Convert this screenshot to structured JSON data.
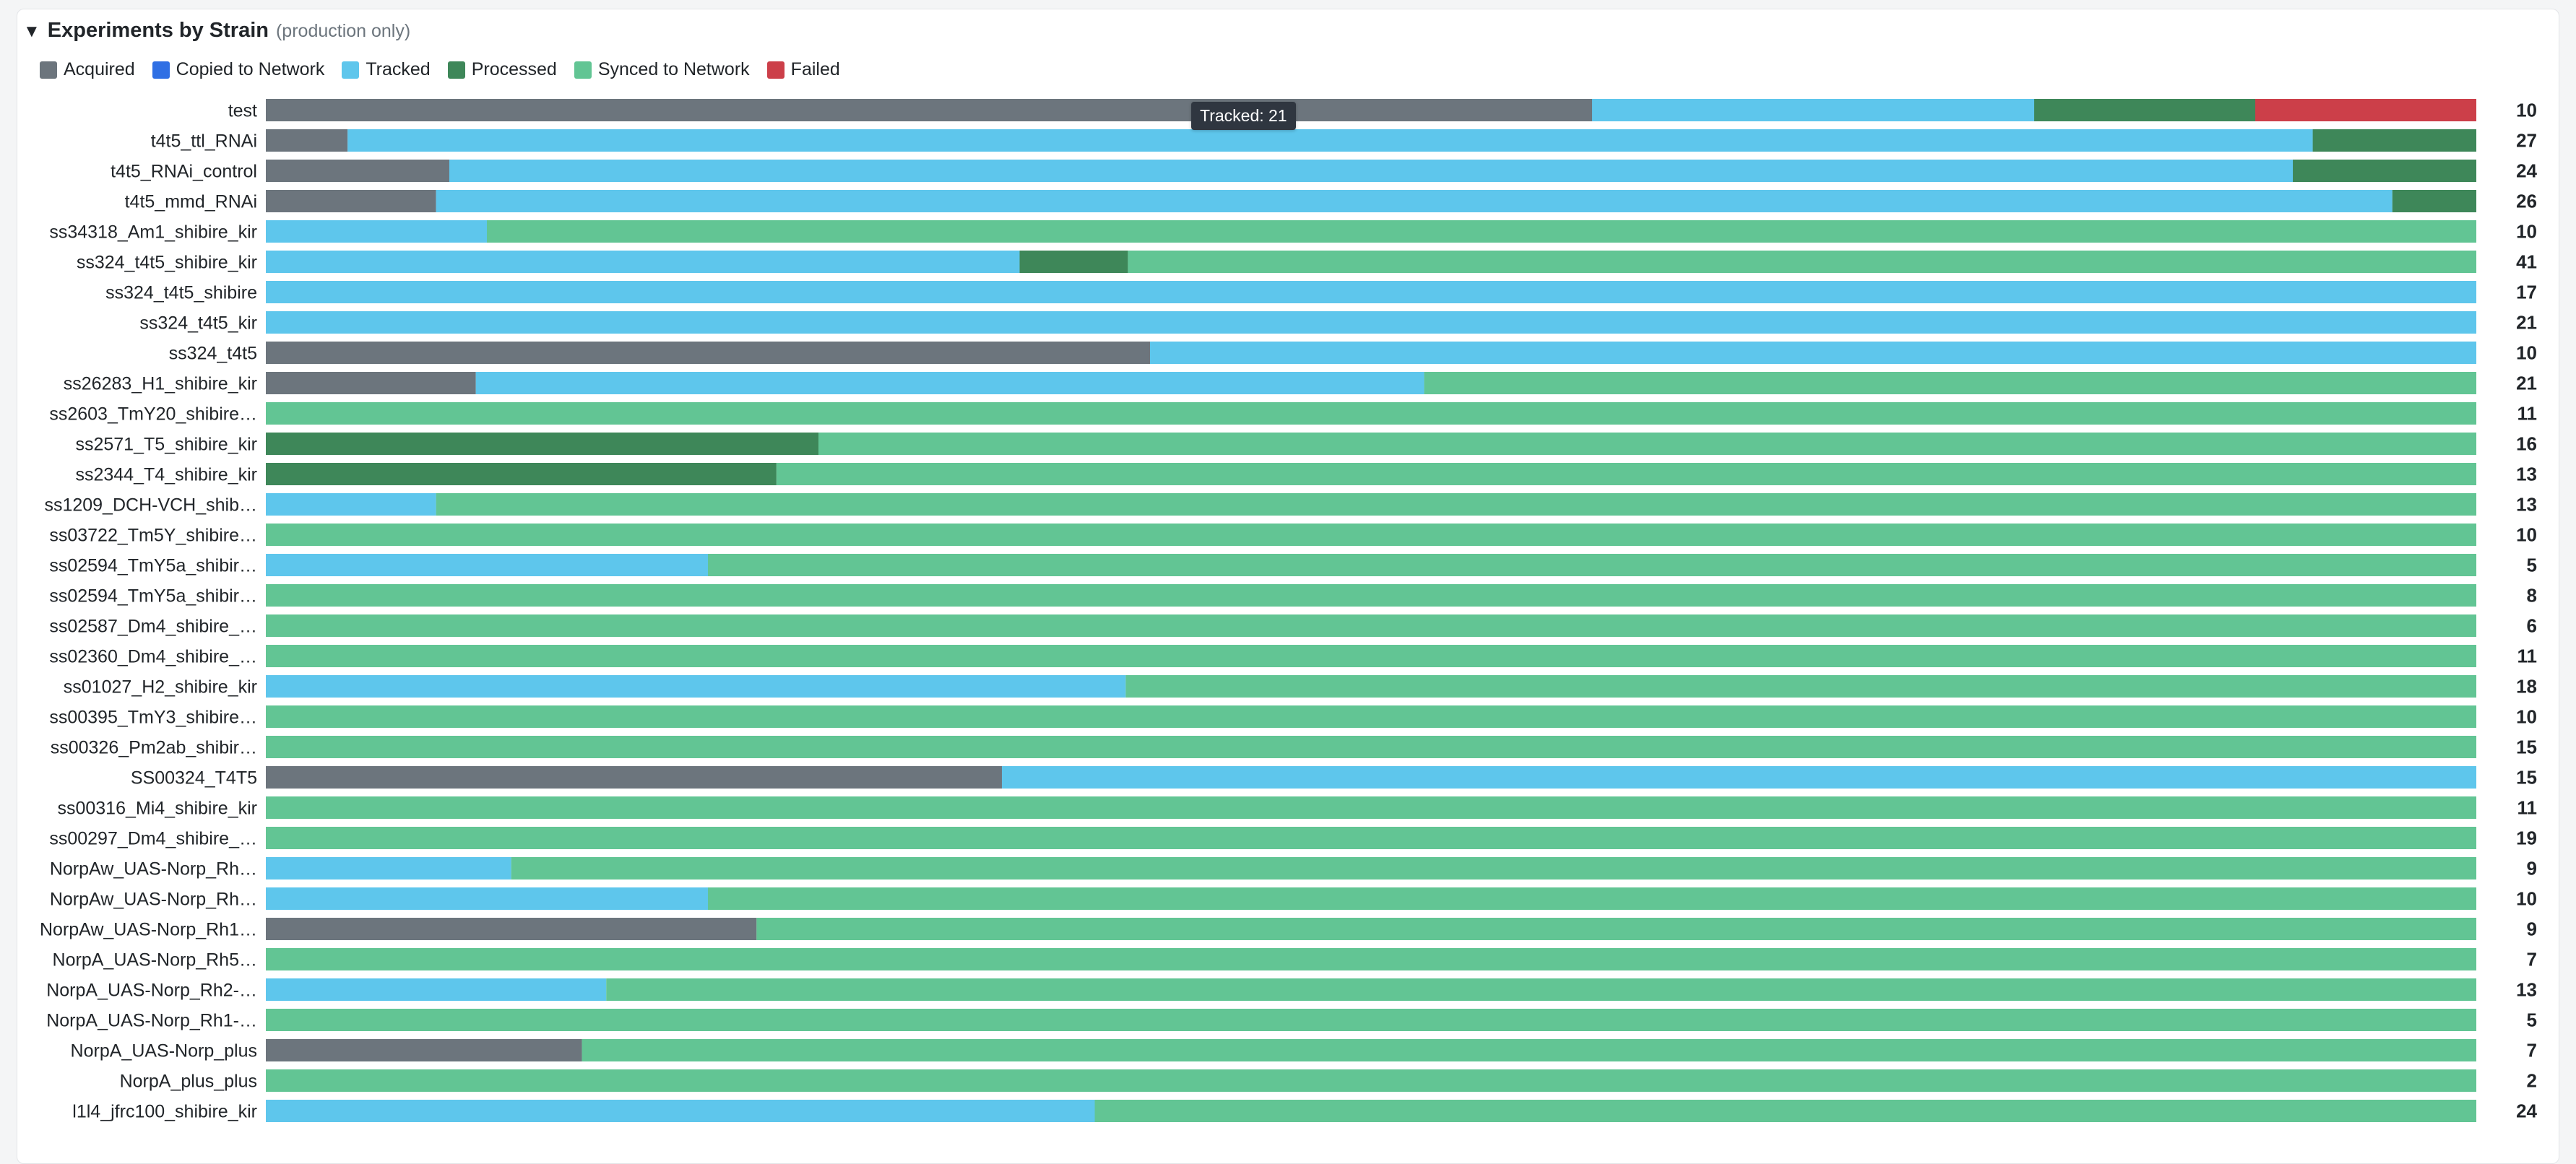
{
  "header": {
    "title": "Experiments by Strain",
    "subtitle": "(production only)"
  },
  "tooltip": {
    "text": "Tracked: 21"
  },
  "colors": {
    "Acquired": "#6c757d",
    "Copied to Network": "#2f6fe4",
    "Tracked": "#5ec6ec",
    "Processed": "#3e8759",
    "Synced to Network": "#62c594",
    "Failed": "#cc3f49"
  },
  "chart_data": {
    "type": "bar",
    "orientation": "horizontal",
    "stacked": "percent",
    "title": "Experiments by Strain",
    "subtitle": "(production only)",
    "legend": [
      "Acquired",
      "Copied to Network",
      "Tracked",
      "Processed",
      "Synced to Network",
      "Failed"
    ],
    "legend_position": "top-left",
    "rows": [
      {
        "label": "test",
        "total": "10",
        "segments": [
          {
            "status": "Acquired",
            "fraction": 0.6
          },
          {
            "status": "Tracked",
            "fraction": 0.2
          },
          {
            "status": "Processed",
            "fraction": 0.1
          },
          {
            "status": "Failed",
            "fraction": 0.1
          }
        ]
      },
      {
        "label": "t4t5_ttl_RNAi",
        "total": "27",
        "segments": [
          {
            "status": "Acquired",
            "fraction": 0.037
          },
          {
            "status": "Tracked",
            "fraction": 0.889
          },
          {
            "status": "Processed",
            "fraction": 0.074
          }
        ]
      },
      {
        "label": "t4t5_RNAi_control",
        "total": "24",
        "segments": [
          {
            "status": "Acquired",
            "fraction": 0.083
          },
          {
            "status": "Tracked",
            "fraction": 0.834
          },
          {
            "status": "Processed",
            "fraction": 0.083
          }
        ]
      },
      {
        "label": "t4t5_mmd_RNAi",
        "total": "26",
        "segments": [
          {
            "status": "Acquired",
            "fraction": 0.077
          },
          {
            "status": "Tracked",
            "fraction": 0.885
          },
          {
            "status": "Processed",
            "fraction": 0.038
          }
        ]
      },
      {
        "label": "ss34318_Am1_shibire_kir",
        "total": "10",
        "segments": [
          {
            "status": "Tracked",
            "fraction": 0.1
          },
          {
            "status": "Synced to Network",
            "fraction": 0.9
          }
        ]
      },
      {
        "label": "ss324_t4t5_shibire_kir",
        "total": "41",
        "segments": [
          {
            "status": "Tracked",
            "fraction": 0.341
          },
          {
            "status": "Processed",
            "fraction": 0.049
          },
          {
            "status": "Synced to Network",
            "fraction": 0.61
          }
        ]
      },
      {
        "label": "ss324_t4t5_shibire",
        "total": "17",
        "segments": [
          {
            "status": "Tracked",
            "fraction": 1.0
          }
        ]
      },
      {
        "label": "ss324_t4t5_kir",
        "total": "21",
        "segments": [
          {
            "status": "Tracked",
            "fraction": 1.0
          }
        ]
      },
      {
        "label": "ss324_t4t5",
        "total": "10",
        "segments": [
          {
            "status": "Acquired",
            "fraction": 0.4
          },
          {
            "status": "Tracked",
            "fraction": 0.6
          }
        ]
      },
      {
        "label": "ss26283_H1_shibire_kir",
        "total": "21",
        "segments": [
          {
            "status": "Acquired",
            "fraction": 0.095
          },
          {
            "status": "Tracked",
            "fraction": 0.429
          },
          {
            "status": "Synced to Network",
            "fraction": 0.476
          }
        ]
      },
      {
        "label": "ss2603_TmY20_shibire…",
        "total": "11",
        "segments": [
          {
            "status": "Synced to Network",
            "fraction": 1.0
          }
        ]
      },
      {
        "label": "ss2571_T5_shibire_kir",
        "total": "16",
        "segments": [
          {
            "status": "Processed",
            "fraction": 0.25
          },
          {
            "status": "Synced to Network",
            "fraction": 0.75
          }
        ]
      },
      {
        "label": "ss2344_T4_shibire_kir",
        "total": "13",
        "segments": [
          {
            "status": "Processed",
            "fraction": 0.231
          },
          {
            "status": "Synced to Network",
            "fraction": 0.769
          }
        ]
      },
      {
        "label": "ss1209_DCH-VCH_shib…",
        "total": "13",
        "segments": [
          {
            "status": "Tracked",
            "fraction": 0.077
          },
          {
            "status": "Synced to Network",
            "fraction": 0.923
          }
        ]
      },
      {
        "label": "ss03722_Tm5Y_shibire…",
        "total": "10",
        "segments": [
          {
            "status": "Synced to Network",
            "fraction": 1.0
          }
        ]
      },
      {
        "label": "ss02594_TmY5a_shibir…",
        "total": "5",
        "segments": [
          {
            "status": "Tracked",
            "fraction": 0.2
          },
          {
            "status": "Synced to Network",
            "fraction": 0.8
          }
        ]
      },
      {
        "label": "ss02594_TmY5a_shibir…",
        "total": "8",
        "segments": [
          {
            "status": "Synced to Network",
            "fraction": 1.0
          }
        ]
      },
      {
        "label": "ss02587_Dm4_shibire_…",
        "total": "6",
        "segments": [
          {
            "status": "Synced to Network",
            "fraction": 1.0
          }
        ]
      },
      {
        "label": "ss02360_Dm4_shibire_…",
        "total": "11",
        "segments": [
          {
            "status": "Synced to Network",
            "fraction": 1.0
          }
        ]
      },
      {
        "label": "ss01027_H2_shibire_kir",
        "total": "18",
        "segments": [
          {
            "status": "Tracked",
            "fraction": 0.389
          },
          {
            "status": "Synced to Network",
            "fraction": 0.611
          }
        ]
      },
      {
        "label": "ss00395_TmY3_shibire…",
        "total": "10",
        "segments": [
          {
            "status": "Synced to Network",
            "fraction": 1.0
          }
        ]
      },
      {
        "label": "ss00326_Pm2ab_shibir…",
        "total": "15",
        "segments": [
          {
            "status": "Synced to Network",
            "fraction": 1.0
          }
        ]
      },
      {
        "label": "SS00324_T4T5",
        "total": "15",
        "segments": [
          {
            "status": "Acquired",
            "fraction": 0.333
          },
          {
            "status": "Tracked",
            "fraction": 0.667
          }
        ]
      },
      {
        "label": "ss00316_Mi4_shibire_kir",
        "total": "11",
        "segments": [
          {
            "status": "Synced to Network",
            "fraction": 1.0
          }
        ]
      },
      {
        "label": "ss00297_Dm4_shibire_…",
        "total": "19",
        "segments": [
          {
            "status": "Synced to Network",
            "fraction": 1.0
          }
        ]
      },
      {
        "label": "NorpAw_UAS-Norp_Rh…",
        "total": "9",
        "segments": [
          {
            "status": "Tracked",
            "fraction": 0.111
          },
          {
            "status": "Synced to Network",
            "fraction": 0.889
          }
        ]
      },
      {
        "label": "NorpAw_UAS-Norp_Rh…",
        "total": "10",
        "segments": [
          {
            "status": "Tracked",
            "fraction": 0.2
          },
          {
            "status": "Synced to Network",
            "fraction": 0.8
          }
        ]
      },
      {
        "label": "NorpAw_UAS-Norp_Rh1…",
        "total": "9",
        "segments": [
          {
            "status": "Acquired",
            "fraction": 0.222
          },
          {
            "status": "Synced to Network",
            "fraction": 0.778
          }
        ]
      },
      {
        "label": "NorpA_UAS-Norp_Rh5…",
        "total": "7",
        "segments": [
          {
            "status": "Synced to Network",
            "fraction": 1.0
          }
        ]
      },
      {
        "label": "NorpA_UAS-Norp_Rh2-…",
        "total": "13",
        "segments": [
          {
            "status": "Tracked",
            "fraction": 0.154
          },
          {
            "status": "Synced to Network",
            "fraction": 0.846
          }
        ]
      },
      {
        "label": "NorpA_UAS-Norp_Rh1-…",
        "total": "5",
        "segments": [
          {
            "status": "Synced to Network",
            "fraction": 1.0
          }
        ]
      },
      {
        "label": "NorpA_UAS-Norp_plus",
        "total": "7",
        "segments": [
          {
            "status": "Acquired",
            "fraction": 0.143
          },
          {
            "status": "Synced to Network",
            "fraction": 0.857
          }
        ]
      },
      {
        "label": "NorpA_plus_plus",
        "total": "2",
        "segments": [
          {
            "status": "Synced to Network",
            "fraction": 1.0
          }
        ]
      },
      {
        "label": "l1l4_jfrc100_shibire_kir",
        "total": "24",
        "segments": [
          {
            "status": "Tracked",
            "fraction": 0.375
          },
          {
            "status": "Synced to Network",
            "fraction": 0.625
          }
        ]
      }
    ]
  }
}
